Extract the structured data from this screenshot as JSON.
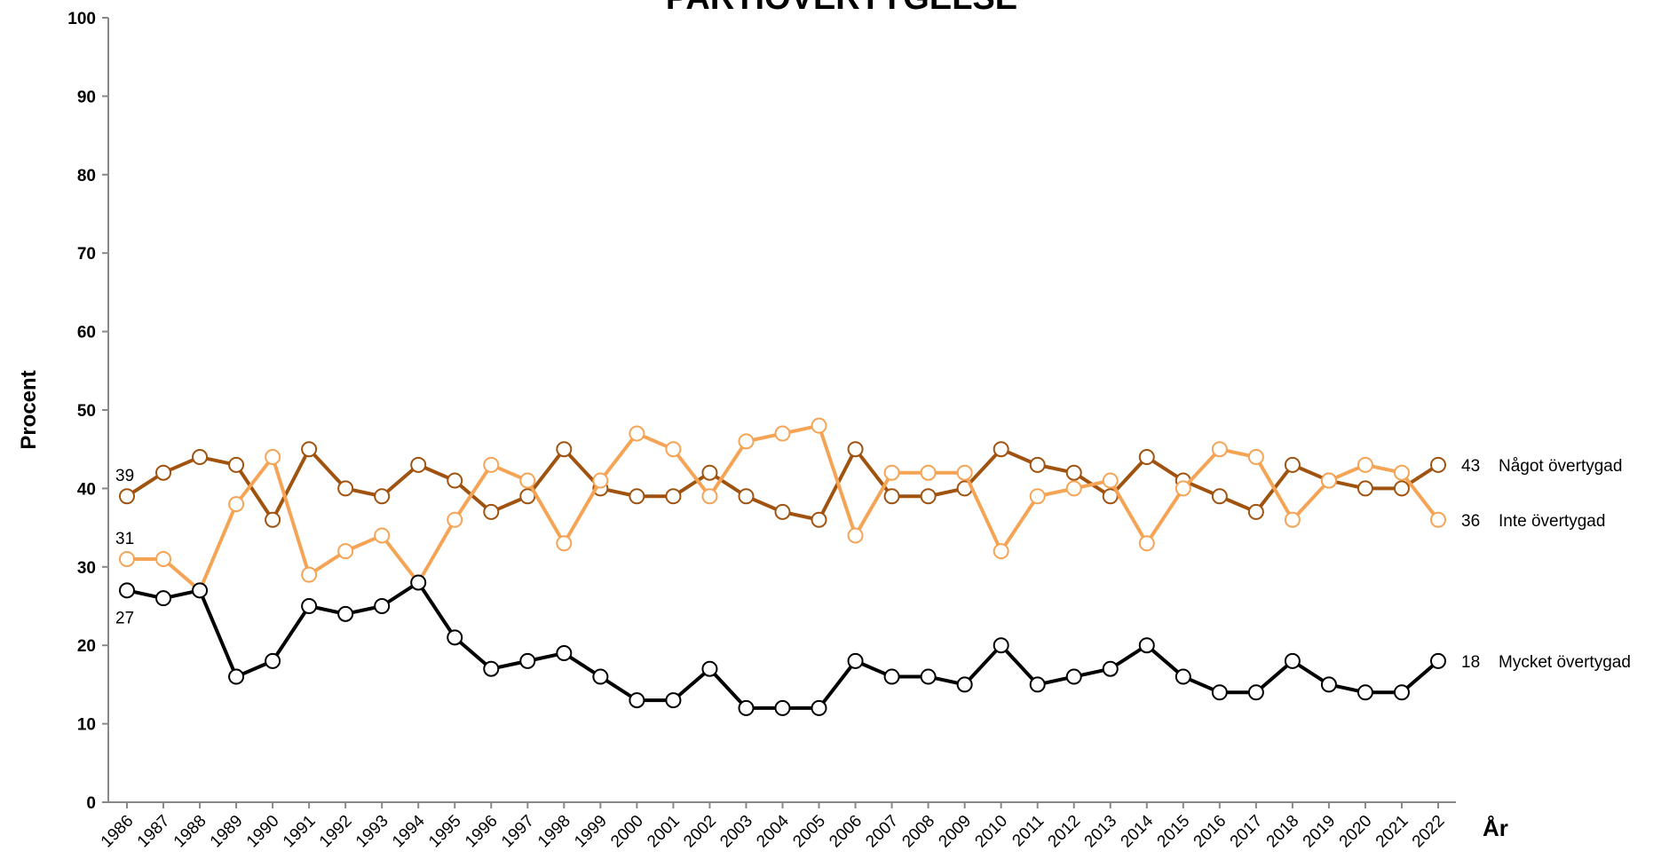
{
  "chart_data": {
    "type": "line",
    "title": "PARTIÖVERTYGELSE",
    "y_label": "Procent",
    "x_label": "År",
    "categories": [
      "1986",
      "1987",
      "1988",
      "1989",
      "1990",
      "1991",
      "1992",
      "1993",
      "1994",
      "1995",
      "1996",
      "1997",
      "1998",
      "1999",
      "2000",
      "2001",
      "2002",
      "2003",
      "2004",
      "2005",
      "2006",
      "2007",
      "2008",
      "2009",
      "2010",
      "2011",
      "2012",
      "2013",
      "2014",
      "2015",
      "2016",
      "2017",
      "2018",
      "2019",
      "2020",
      "2021",
      "2022"
    ],
    "series": [
      {
        "name": "Något övertygad",
        "color": "#a0520f",
        "values": [
          39,
          42,
          44,
          43,
          36,
          45,
          40,
          39,
          43,
          41,
          37,
          39,
          45,
          40,
          39,
          39,
          42,
          39,
          37,
          36,
          45,
          39,
          39,
          40,
          45,
          43,
          42,
          39,
          44,
          41,
          39,
          37,
          43,
          41,
          40,
          40,
          43
        ]
      },
      {
        "name": "Inte övertygad",
        "color": "#f5a455",
        "values": [
          31,
          31,
          27,
          38,
          44,
          29,
          32,
          34,
          28,
          36,
          43,
          41,
          33,
          41,
          47,
          45,
          39,
          46,
          47,
          48,
          34,
          42,
          42,
          42,
          32,
          39,
          40,
          41,
          33,
          40,
          45,
          44,
          36,
          41,
          43,
          42,
          36
        ]
      },
      {
        "name": "Mycket övertygad",
        "color": "#000000",
        "values": [
          27,
          26,
          27,
          16,
          18,
          25,
          24,
          25,
          28,
          21,
          17,
          18,
          19,
          16,
          13,
          13,
          17,
          12,
          12,
          12,
          18,
          16,
          16,
          15,
          20,
          15,
          16,
          17,
          20,
          16,
          14,
          14,
          18,
          15,
          14,
          14,
          18
        ]
      }
    ],
    "ylim": [
      0,
      100
    ],
    "yticks": [
      0,
      10,
      20,
      30,
      40,
      50,
      60,
      70,
      80,
      90,
      100
    ],
    "grid": false
  }
}
